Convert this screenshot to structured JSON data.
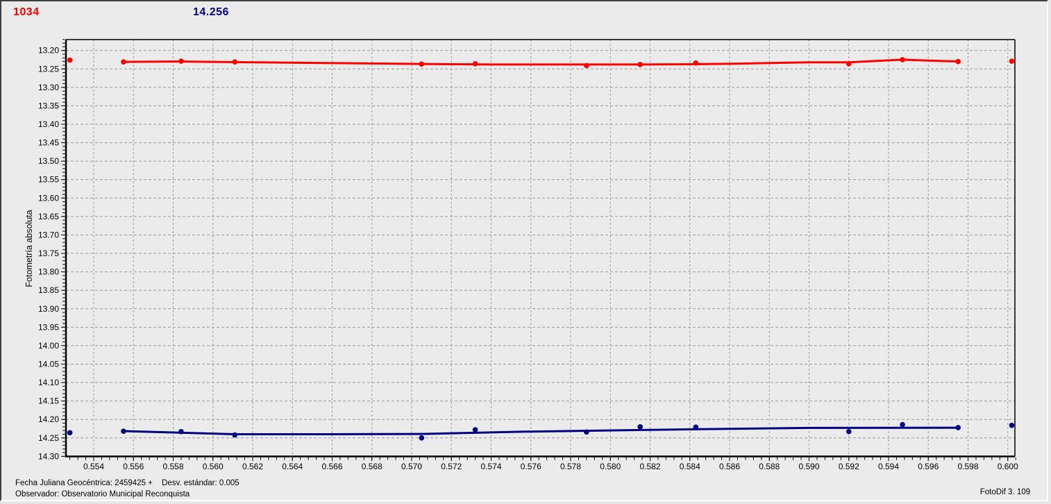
{
  "header": {
    "object_id": "1034",
    "magnitude": "14.256"
  },
  "footer": {
    "julian_date": "Fecha Juliana Geocéntrica: 2459425 +",
    "std_dev": "Desv. estándar: 0.005",
    "observer": "Observador: Observatorio Municipal Reconquista",
    "app_version": "FotoDif 3. 109"
  },
  "colors": {
    "background": "#ebebeb",
    "grid": "#999999",
    "axis": "#000000",
    "red_series": "#ff0000",
    "blue_series": "#000080",
    "object_id_text": "#ee0000",
    "magnitude_text": "#000080"
  },
  "chart_data": {
    "type": "scatter",
    "title": "",
    "xlabel": "",
    "ylabel": "Fotometría absoluta",
    "grid": true,
    "y_inverted": true,
    "x_range": [
      0.5526,
      0.6004
    ],
    "y_range": [
      13.17,
      14.3
    ],
    "x_ticks": [
      0.554,
      0.556,
      0.558,
      0.56,
      0.562,
      0.564,
      0.566,
      0.568,
      0.57,
      0.572,
      0.574,
      0.576,
      0.578,
      0.58,
      0.582,
      0.584,
      0.586,
      0.588,
      0.59,
      0.592,
      0.594,
      0.596,
      0.598,
      0.6
    ],
    "y_ticks": [
      13.2,
      13.25,
      13.3,
      13.35,
      13.4,
      13.45,
      13.5,
      13.55,
      13.6,
      13.65,
      13.7,
      13.75,
      13.8,
      13.85,
      13.9,
      13.95,
      14.0,
      14.05,
      14.1,
      14.15,
      14.2,
      14.25,
      14.3
    ],
    "x_minor_step": 0.0004,
    "y_minor_step": 0.01,
    "series": [
      {
        "name": "red-series",
        "color": "#ff0000",
        "points": [
          [
            0.5528,
            13.226
          ],
          [
            0.5555,
            13.231
          ],
          [
            0.5584,
            13.229
          ],
          [
            0.5611,
            13.231
          ],
          [
            0.5705,
            13.237
          ],
          [
            0.5732,
            13.236
          ],
          [
            0.5788,
            13.241
          ],
          [
            0.5815,
            13.238
          ],
          [
            0.5843,
            13.234
          ],
          [
            0.592,
            13.236
          ],
          [
            0.5947,
            13.225
          ],
          [
            0.5975,
            13.23
          ],
          [
            0.6002,
            13.229
          ]
        ],
        "trend_line": [
          [
            0.5555,
            13.231
          ],
          [
            0.5584,
            13.23
          ],
          [
            0.5611,
            13.2315
          ],
          [
            0.5655,
            13.234
          ],
          [
            0.5705,
            13.2365
          ],
          [
            0.574,
            13.238
          ],
          [
            0.5815,
            13.238
          ],
          [
            0.5843,
            13.2372
          ],
          [
            0.586,
            13.236
          ],
          [
            0.59,
            13.232
          ],
          [
            0.592,
            13.232
          ],
          [
            0.5947,
            13.225
          ],
          [
            0.5975,
            13.23
          ]
        ]
      },
      {
        "name": "blue-series",
        "color": "#000080",
        "points": [
          [
            0.5528,
            14.236
          ],
          [
            0.5555,
            14.232
          ],
          [
            0.5584,
            14.233
          ],
          [
            0.5611,
            14.242
          ],
          [
            0.5705,
            14.25
          ],
          [
            0.5732,
            14.228
          ],
          [
            0.5788,
            14.234
          ],
          [
            0.5815,
            14.22
          ],
          [
            0.5843,
            14.221
          ],
          [
            0.592,
            14.233
          ],
          [
            0.5947,
            14.214
          ],
          [
            0.5975,
            14.222
          ],
          [
            0.6002,
            14.216
          ]
        ],
        "trend_line": [
          [
            0.5555,
            14.2316
          ],
          [
            0.5611,
            14.24
          ],
          [
            0.566,
            14.24
          ],
          [
            0.5705,
            14.2393
          ],
          [
            0.5757,
            14.2331
          ],
          [
            0.5848,
            14.2261
          ],
          [
            0.59,
            14.2229
          ],
          [
            0.5975,
            14.2224
          ]
        ]
      }
    ]
  }
}
